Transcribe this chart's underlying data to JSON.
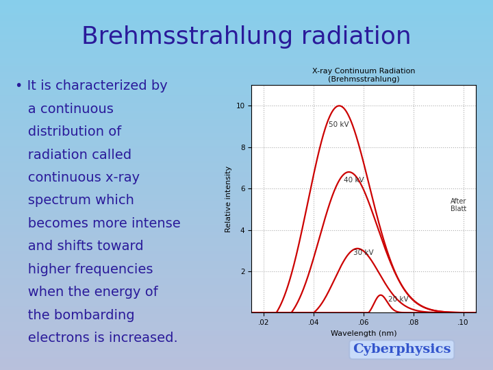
{
  "title": "Brehmsstrahlung radiation",
  "bullet_text": [
    "It is characterized by",
    "a continuous",
    "distribution of",
    "radiation called",
    "continuous x-ray",
    "spectrum which",
    "becomes more intense",
    "and shifts toward",
    "higher frequencies",
    "when the energy of",
    "the bombarding",
    "electrons is increased."
  ],
  "bullet_char": "•",
  "title_color": "#2a1a9a",
  "bullet_color": "#2a1a9a",
  "graph_title1": "X-ray Continuum Radiation",
  "graph_title2": "(Brehmsstrahlung)",
  "graph_xlabel": "Wavelength (nm)",
  "graph_ylabel": "Relative intensity",
  "graph_yticks": [
    2,
    4,
    6,
    8,
    10
  ],
  "graph_xticks": [
    0.02,
    0.04,
    0.06,
    0.08,
    0.1
  ],
  "graph_xtick_labels": [
    ".02",
    ".04",
    ".06",
    ".08",
    ".10"
  ],
  "after_blatt": "After\nBlatt",
  "curve_labels": [
    "50 kV",
    "40 kV",
    "30 kV",
    "20 kV"
  ],
  "curve_color": "#cc0000",
  "cyberphysics_text": "Cyberphysics",
  "cyberphysics_color": "#3355cc",
  "cyberphysics_bg": "#cce0ff"
}
